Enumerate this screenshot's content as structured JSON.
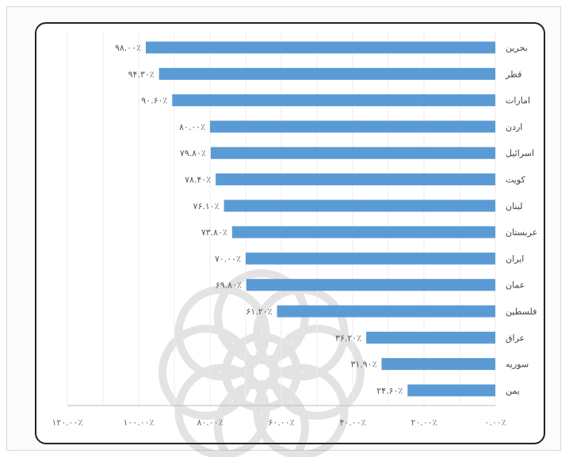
{
  "chart_data": {
    "type": "bar",
    "orientation": "horizontal",
    "x_axis_direction": "right-to-left",
    "categories": [
      "بحرین",
      "قطر",
      "امارات",
      "اردن",
      "اسرائیل",
      "کویت",
      "لبنان",
      "عربستان",
      "ایران",
      "عمان",
      "فلسطین",
      "عراق",
      "سوریه",
      "یمن"
    ],
    "values": [
      98.0,
      94.3,
      90.6,
      80.0,
      79.8,
      78.4,
      76.1,
      73.8,
      70.0,
      69.8,
      61.2,
      36.2,
      31.9,
      24.6
    ],
    "value_labels": [
      "۹۸.۰۰٪",
      "۹۴.۳۰٪",
      "۹۰.۶۰٪",
      "۸۰.۰۰٪",
      "۷۹.۸۰٪",
      "۷۸.۴۰٪",
      "۷۶.۱۰٪",
      "۷۳.۸۰٪",
      "۷۰.۰۰٪",
      "۶۹.۸۰٪",
      "۶۱.۲۰٪",
      "۳۶.۲۰٪",
      "۳۱.۹۰٪",
      "۲۴.۶۰٪"
    ],
    "x_ticks": [
      0,
      20,
      40,
      60,
      80,
      100,
      120
    ],
    "x_tick_labels": [
      "۰.۰۰٪",
      "۲۰.۰۰٪",
      "۴۰.۰۰٪",
      "۶۰.۰۰٪",
      "۸۰.۰۰٪",
      "۱۰۰.۰۰٪",
      "۱۲۰.۰۰٪"
    ],
    "xlim": [
      0,
      120
    ],
    "grid": true,
    "bar_color": "#5b9bd5",
    "title": "",
    "xlabel": "",
    "ylabel": ""
  }
}
